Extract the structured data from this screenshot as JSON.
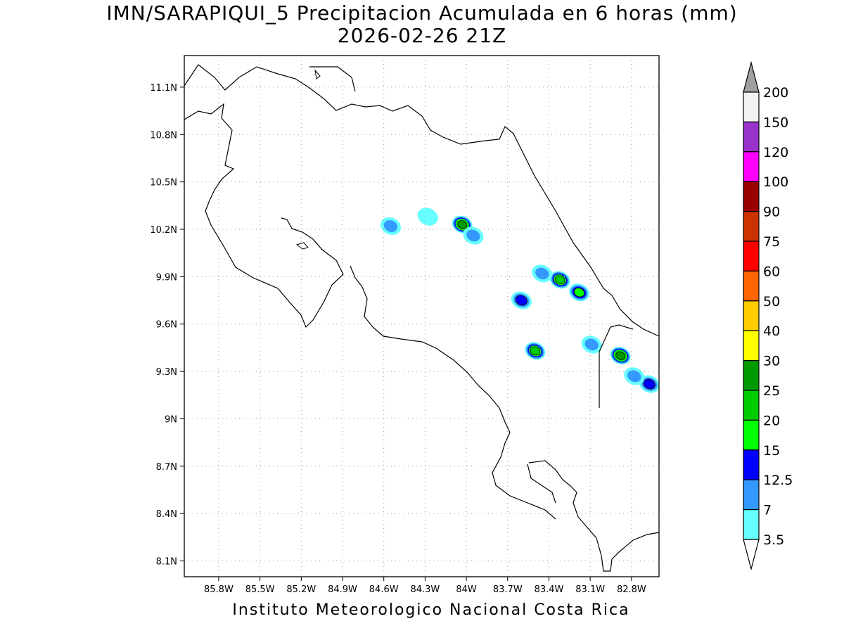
{
  "title_line1": "IMN/SARAPIQUI_5 Precipitacion Acumulada en 6 horas (mm)",
  "title_line2": "2026-02-26 21Z",
  "footer": "Instituto Meteorologico Nacional Costa Rica",
  "axes": {
    "lon_range": [
      -86.05,
      -82.6
    ],
    "lat_range": [
      8.0,
      11.3
    ],
    "lon_ticks": [
      "85.8W",
      "85.5W",
      "85.2W",
      "84.9W",
      "84.6W",
      "84.3W",
      "84W",
      "83.7W",
      "83.4W",
      "83.1W",
      "82.8W"
    ],
    "lon_values": [
      -85.8,
      -85.5,
      -85.2,
      -84.9,
      -84.6,
      -84.3,
      -84.0,
      -83.7,
      -83.4,
      -83.1,
      -82.8
    ],
    "lat_ticks": [
      "11.1N",
      "10.8N",
      "10.5N",
      "10.2N",
      "9.9N",
      "9.6N",
      "9.3N",
      "9N",
      "8.7N",
      "8.4N",
      "8.1N"
    ],
    "lat_values": [
      11.1,
      10.8,
      10.5,
      10.2,
      9.9,
      9.6,
      9.3,
      9.0,
      8.7,
      8.4,
      8.1
    ],
    "grid": "dotted"
  },
  "legend": {
    "labels": [
      "200",
      "150",
      "120",
      "100",
      "90",
      "75",
      "60",
      "50",
      "40",
      "30",
      "25",
      "20",
      "15",
      "12.5",
      "7",
      "3.5"
    ],
    "colors": [
      "#f2f2f2",
      "#9933cc",
      "#ff00ff",
      "#990000",
      "#cc3300",
      "#ff0000",
      "#ff6600",
      "#ffcc00",
      "#ffff00",
      "#009900",
      "#00cc00",
      "#00ff00",
      "#0000ff",
      "#3399ff",
      "#66ffff"
    ],
    "top_arrow_color": "#a0a0a0",
    "bottom_arrow_color": "#ffffff"
  },
  "cells": [
    {
      "lon": -84.55,
      "lat": 10.22,
      "max": 7
    },
    {
      "lon": -84.03,
      "lat": 10.23,
      "max": 25
    },
    {
      "lon": -83.95,
      "lat": 10.16,
      "max": 7
    },
    {
      "lon": -84.28,
      "lat": 10.28,
      "max": 3.5
    },
    {
      "lon": -83.32,
      "lat": 9.88,
      "max": 20
    },
    {
      "lon": -83.18,
      "lat": 9.8,
      "max": 15
    },
    {
      "lon": -83.45,
      "lat": 9.92,
      "max": 7
    },
    {
      "lon": -83.6,
      "lat": 9.75,
      "max": 12.5
    },
    {
      "lon": -83.5,
      "lat": 9.43,
      "max": 20
    },
    {
      "lon": -82.88,
      "lat": 9.4,
      "max": 25
    },
    {
      "lon": -83.09,
      "lat": 9.47,
      "max": 7
    },
    {
      "lon": -82.67,
      "lat": 9.22,
      "max": 12.5
    },
    {
      "lon": -82.78,
      "lat": 9.27,
      "max": 7
    }
  ]
}
